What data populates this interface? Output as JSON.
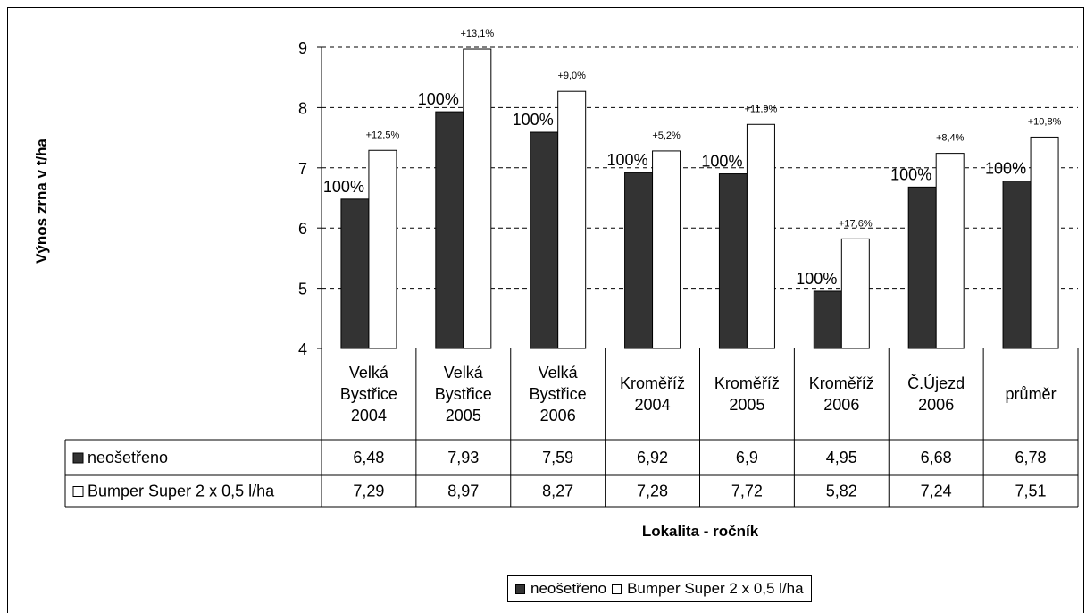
{
  "chart_data": {
    "type": "bar",
    "ylabel": "Výnos zrna v t/ha",
    "xlabel": "Lokalita - ročník",
    "ylim": [
      4,
      9
    ],
    "yticks": [
      4,
      5,
      6,
      7,
      8,
      9
    ],
    "grid": "horizontal dashed",
    "legend_position": "bottom",
    "categories": [
      [
        "Velká",
        "Bystřice",
        "2004"
      ],
      [
        "Velká",
        "Bystřice",
        "2005"
      ],
      [
        "Velká",
        "Bystřice",
        "2006"
      ],
      [
        "Kroměříž",
        "2004"
      ],
      [
        "Kroměříž",
        "2005"
      ],
      [
        "Kroměříž",
        "2006"
      ],
      [
        "Č.Újezd",
        "2006"
      ],
      [
        "průměr"
      ]
    ],
    "series": [
      {
        "name": "neošetřeno",
        "color": "#333333",
        "values": [
          6.48,
          7.93,
          7.59,
          6.92,
          6.9,
          4.95,
          6.68,
          6.78
        ],
        "labels": [
          "6,48",
          "7,93",
          "7,59",
          "6,92",
          "6,9",
          "4,95",
          "6,68",
          "6,78"
        ],
        "bar_annotations": [
          "100%",
          "100%",
          "100%",
          "100%",
          "100%",
          "100%",
          "100%",
          "100%"
        ]
      },
      {
        "name": "Bumper Super 2 x 0,5 l/ha",
        "color": "#ffffff",
        "values": [
          7.29,
          8.97,
          8.27,
          7.28,
          7.72,
          5.82,
          7.24,
          7.51
        ],
        "labels": [
          "7,29",
          "8,97",
          "8,27",
          "7,28",
          "7,72",
          "5,82",
          "7,24",
          "7,51"
        ],
        "bar_annotations": [
          "+12,5%",
          "+13,1%",
          "+9,0%",
          "+5,2%",
          "+11,9%",
          "+17,6%",
          "+8,4%",
          "+10,8%"
        ]
      }
    ]
  },
  "legend": {
    "items": [
      {
        "label": "neošetřeno",
        "color": "#333333"
      },
      {
        "label": "Bumper Super 2 x 0,5 l/ha",
        "color": "#ffffff"
      }
    ]
  }
}
